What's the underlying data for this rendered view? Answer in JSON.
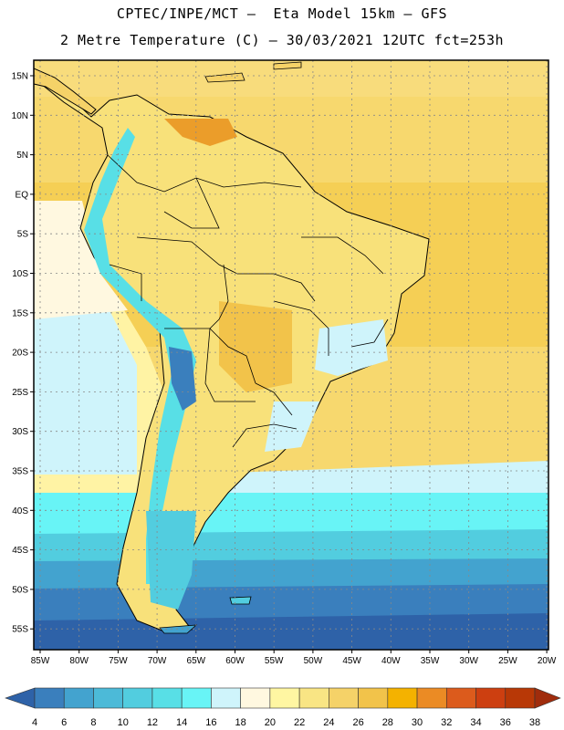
{
  "header": {
    "title_line1": "CPTEC/INPE/MCT –  Eta Model 15km – GFS",
    "title_line2": "2 Metre Temperature (C) – 30/03/2021 12UTC fct=253h"
  },
  "map": {
    "lat_labels": [
      "15N",
      "10N",
      "5N",
      "EQ",
      "5S",
      "10S",
      "15S",
      "20S",
      "25S",
      "30S",
      "35S",
      "40S",
      "45S",
      "50S",
      "55S"
    ],
    "lon_labels": [
      "85W",
      "80W",
      "75W",
      "70W",
      "65W",
      "60W",
      "55W",
      "50W",
      "45W",
      "40W",
      "35W",
      "30W",
      "25W",
      "20W"
    ],
    "ocean_bands_c": [
      22,
      24,
      26,
      22,
      20,
      18,
      16,
      12,
      8,
      6
    ]
  },
  "colorbar": {
    "labels": [
      "4",
      "6",
      "8",
      "10",
      "12",
      "14",
      "16",
      "18",
      "20",
      "22",
      "24",
      "26",
      "28",
      "30",
      "32",
      "34",
      "36",
      "38"
    ],
    "colors": [
      "#2e62a8",
      "#3a7fbd",
      "#43a3cf",
      "#4cbad8",
      "#52cddf",
      "#58dfe6",
      "#68f4f6",
      "#cff4fb",
      "#fff8e0",
      "#fff6a2",
      "#f9e584",
      "#f5d268",
      "#f2c34a",
      "#f4b200",
      "#eb8b24",
      "#dc5b1c",
      "#cd3f10",
      "#b83806",
      "#a02c0c"
    ]
  }
}
